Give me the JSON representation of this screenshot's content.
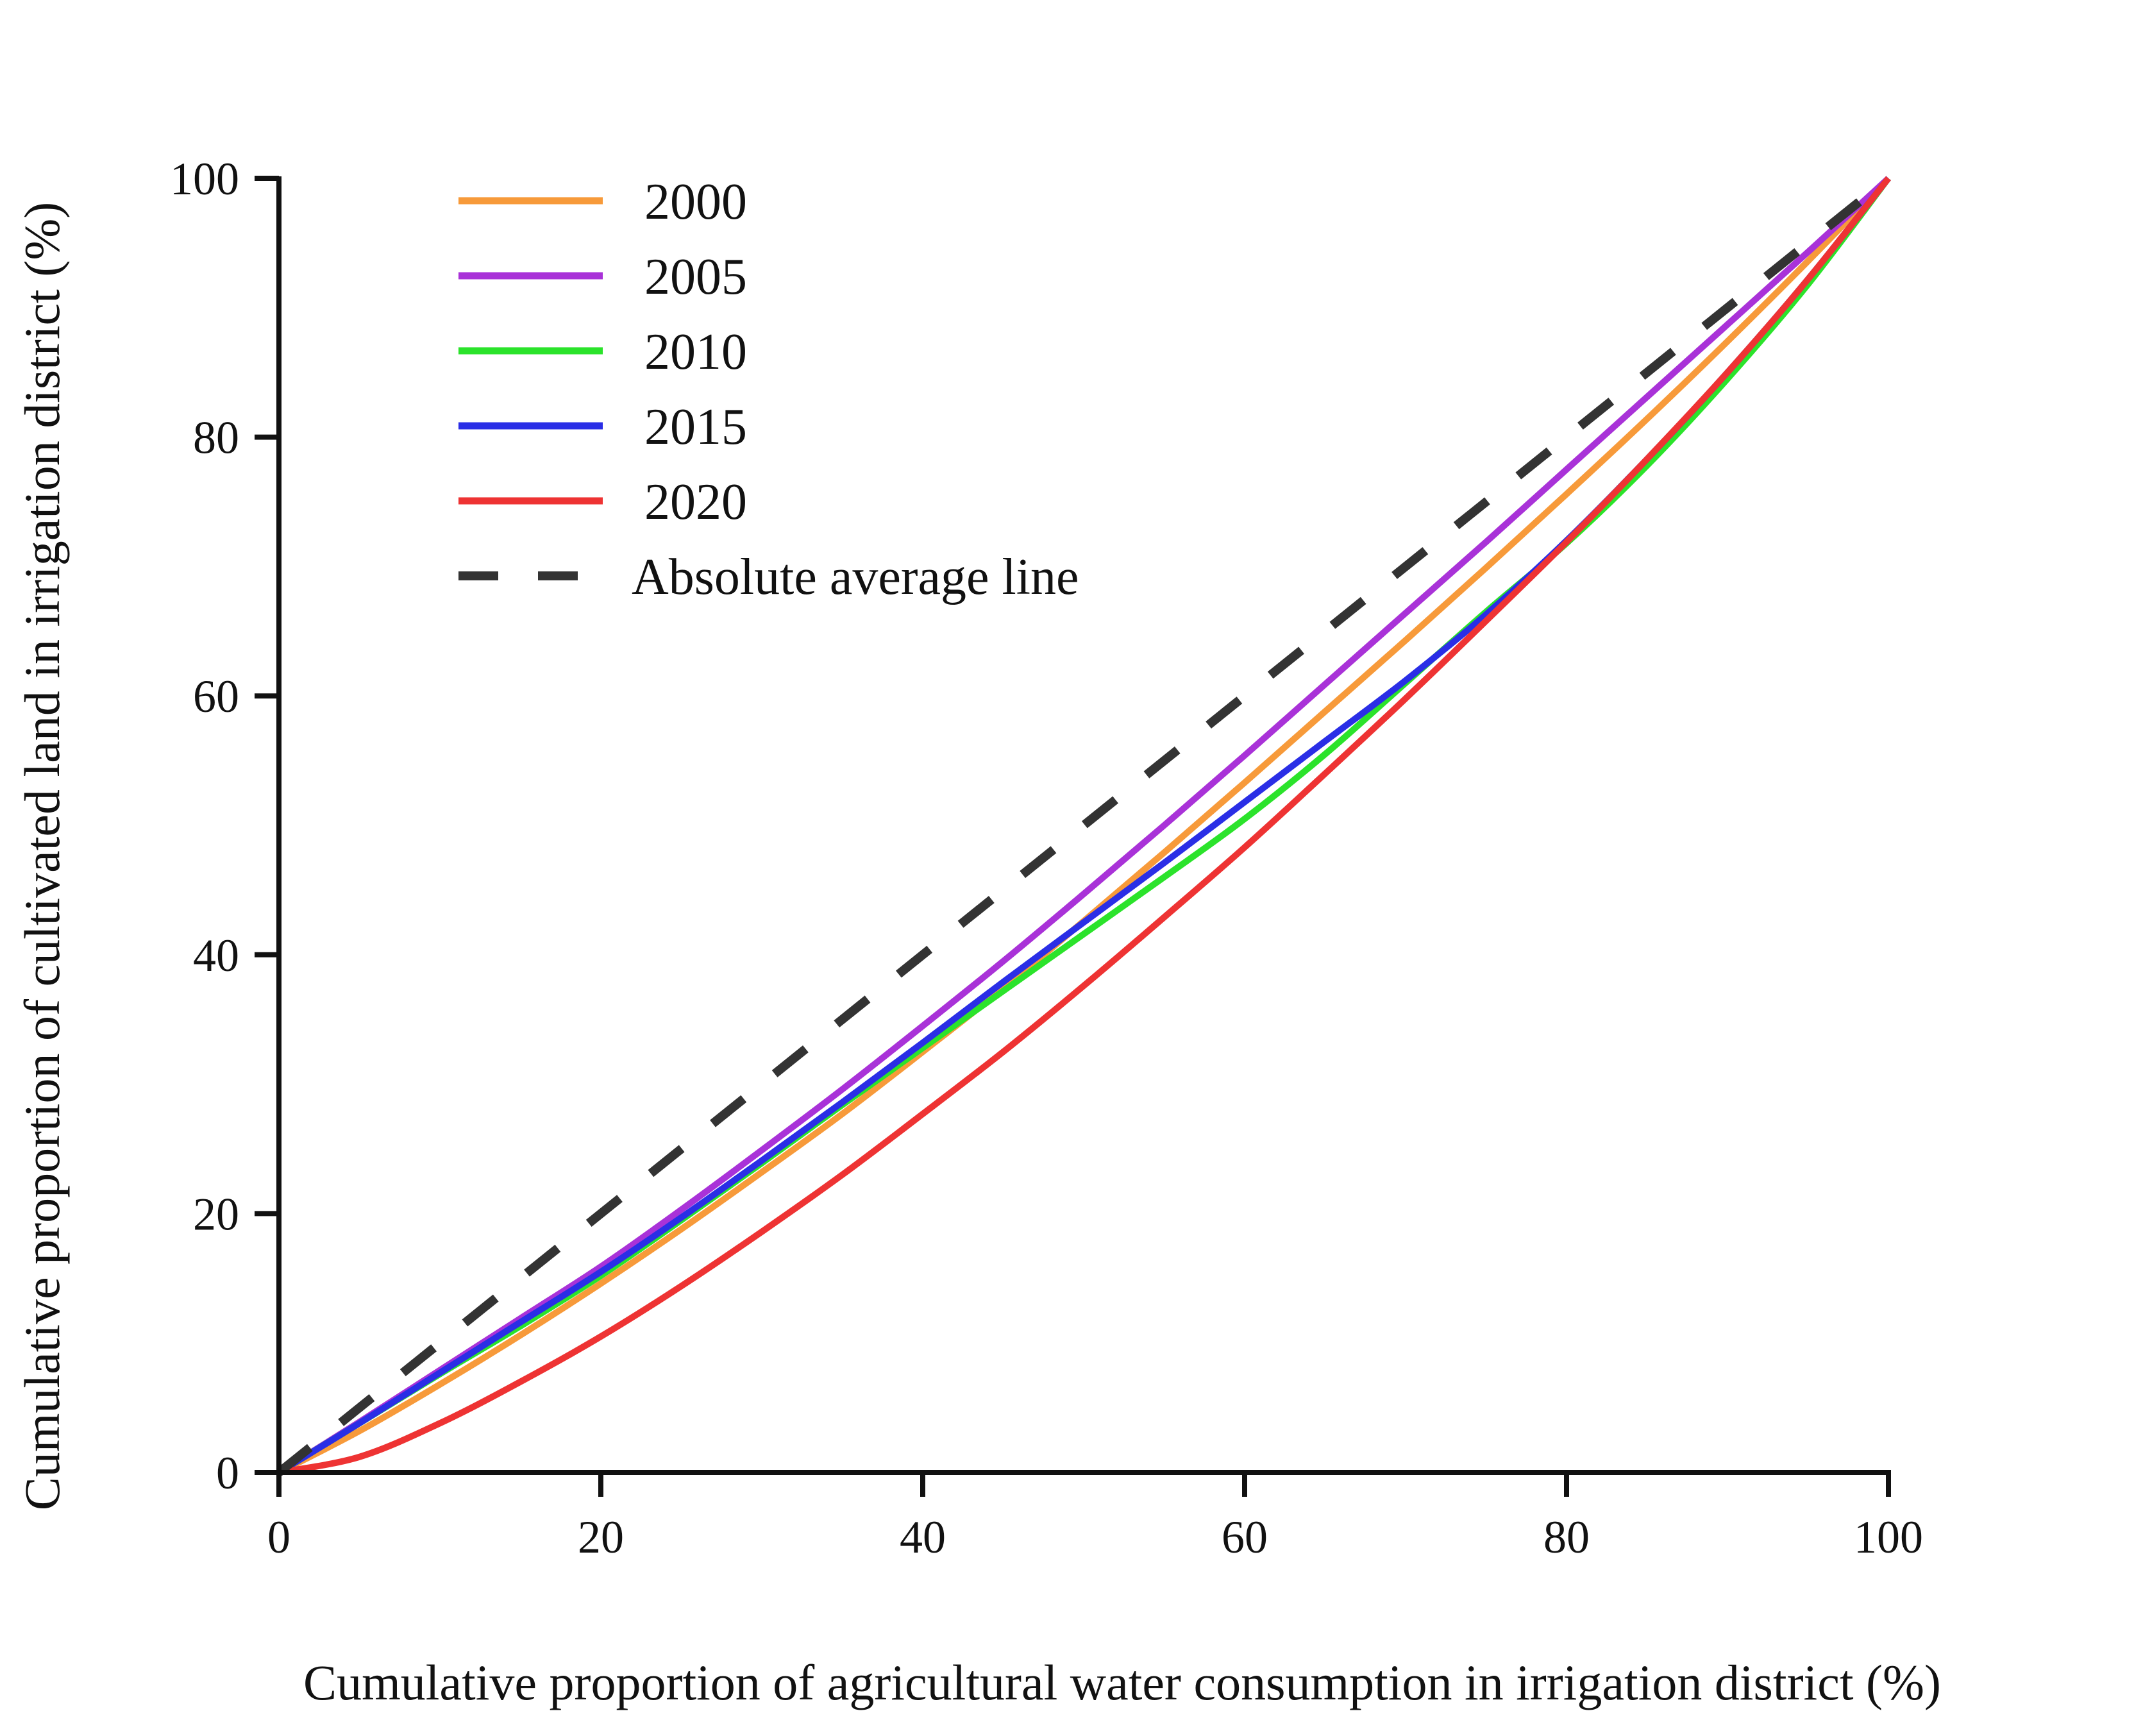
{
  "chart_data": {
    "type": "line",
    "title": "",
    "xlabel": "Cumulative proportion of agricultural water consumption in irrigation district (%)",
    "ylabel": "Cumulative proportion of cultivated land in irrigation district (%)",
    "xlim": [
      0,
      100
    ],
    "ylim": [
      0,
      100
    ],
    "xticks": [
      0,
      20,
      40,
      60,
      80,
      100
    ],
    "yticks": [
      0,
      20,
      40,
      60,
      80,
      100
    ],
    "grid": false,
    "legend_position": "top-left",
    "x": [
      0,
      5,
      10,
      15,
      20,
      25,
      30,
      35,
      40,
      45,
      50,
      55,
      60,
      65,
      70,
      75,
      80,
      85,
      90,
      95,
      100
    ],
    "series": [
      {
        "name": "2000",
        "color": "#F79A3A",
        "dash": "solid",
        "values": [
          0,
          3.2,
          6.8,
          10.6,
          14.6,
          18.8,
          23.2,
          27.7,
          32.5,
          37.4,
          42.6,
          47.9,
          53.3,
          58.8,
          64.3,
          69.9,
          75.6,
          81.4,
          87.4,
          93.6,
          100
        ]
      },
      {
        "name": "2005",
        "color": "#A932D8",
        "dash": "solid",
        "values": [
          0,
          3.9,
          7.9,
          11.9,
          15.9,
          20.3,
          24.9,
          29.6,
          34.5,
          39.5,
          44.7,
          50.0,
          55.4,
          60.9,
          66.4,
          71.9,
          77.5,
          83.1,
          88.7,
          94.3,
          100
        ]
      },
      {
        "name": "2010",
        "color": "#2BE32B",
        "dash": "solid",
        "values": [
          0,
          3.8,
          7.6,
          11.3,
          15.2,
          19.5,
          23.9,
          28.4,
          32.8,
          37.2,
          41.6,
          46.0,
          50.5,
          55.5,
          61.0,
          66.5,
          71.8,
          77.8,
          84.5,
          91.8,
          100
        ]
      },
      {
        "name": "2015",
        "color": "#2A2EE6",
        "dash": "solid",
        "values": [
          0,
          3.8,
          7.7,
          11.6,
          15.5,
          19.7,
          24.1,
          28.6,
          33.2,
          37.9,
          42.5,
          47.1,
          51.8,
          56.5,
          61.2,
          66.3,
          72.0,
          78.3,
          85.0,
          92.2,
          100
        ]
      },
      {
        "name": "2020",
        "color": "#EE3333",
        "dash": "solid",
        "values": [
          0,
          1.2,
          3.8,
          7.0,
          10.5,
          14.4,
          18.6,
          23.0,
          27.7,
          32.5,
          37.6,
          42.9,
          48.3,
          54.0,
          59.8,
          65.8,
          71.9,
          78.3,
          85.0,
          92.2,
          100
        ]
      },
      {
        "name": "Absolute average line",
        "color": "#333333",
        "dash": "dashed",
        "values": [
          0,
          5,
          10,
          15,
          20,
          25,
          30,
          35,
          40,
          45,
          50,
          55,
          60,
          65,
          70,
          75,
          80,
          85,
          90,
          95,
          100
        ]
      }
    ]
  }
}
